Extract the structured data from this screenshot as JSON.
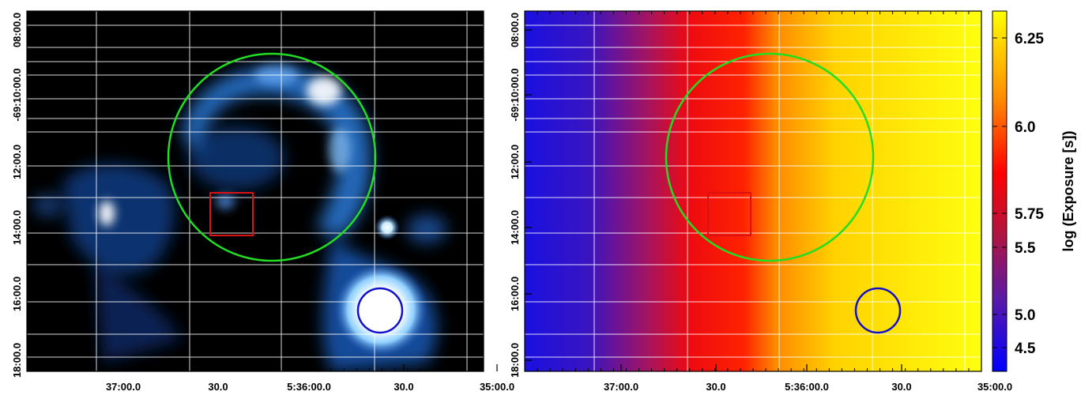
{
  "panels": [
    {
      "id": "xray-image",
      "y_ticks": [
        "08:00.0",
        "-69:10:00.0",
        "12:00.0",
        "14:00.0",
        "16:00.0",
        "18:00.0"
      ],
      "x_ticks": [
        "37:00.0",
        "30.0",
        "5:36:00.0",
        "30.0",
        "35:00.0"
      ]
    },
    {
      "id": "exposure-map",
      "y_ticks": [
        "08:00.0",
        "-69:10:00.0",
        "12:00.0",
        "14:00.0",
        "16:00.0",
        "18:00.0"
      ],
      "x_ticks": [
        "37:00.0",
        "30.0",
        "5:36:00.0",
        "30.0",
        "35:00.0"
      ]
    }
  ],
  "overlays": {
    "large_circle_color": "#22dd22",
    "square_color": "#dd1111",
    "small_circle_color": "#1111cc"
  },
  "colorbar": {
    "label": "log (Exposure [s])",
    "ticks": [
      "6.25",
      "6.0",
      "5.75",
      "5.5",
      "5.0",
      "4.5"
    ],
    "colors": [
      "#0000ff",
      "#5a1aa8",
      "#b01440",
      "#ff0000",
      "#ff8800",
      "#ffff00"
    ]
  }
}
